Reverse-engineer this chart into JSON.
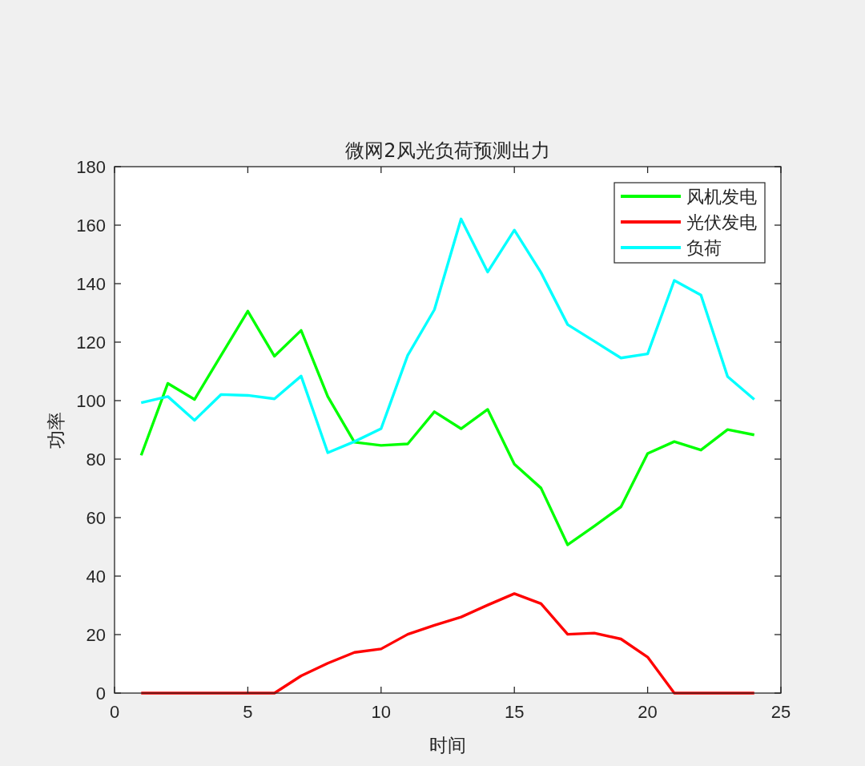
{
  "chart_data": {
    "type": "line",
    "title": "微网2风光负荷预测出力",
    "xlabel": "时间",
    "ylabel": "功率",
    "x": [
      1,
      2,
      3,
      4,
      5,
      6,
      7,
      8,
      9,
      10,
      11,
      12,
      13,
      14,
      15,
      16,
      17,
      18,
      19,
      20,
      21,
      22,
      23,
      24
    ],
    "series": [
      {
        "name": "风机发电",
        "color": "#00ff00",
        "values": [
          81.3,
          105.9,
          100.4,
          115.5,
          130.6,
          115.2,
          124.0,
          101.4,
          85.8,
          84.7,
          85.2,
          96.2,
          90.4,
          97.0,
          78.3,
          70.1,
          50.7,
          57.1,
          63.7,
          81.9,
          86.0,
          83.1,
          90.1,
          88.3
        ]
      },
      {
        "name": "光伏发电",
        "color": "#ff0000",
        "values": [
          0,
          0,
          0,
          0,
          0,
          0,
          5.9,
          10.2,
          13.9,
          15.1,
          20.1,
          23.2,
          26.0,
          30.1,
          34.0,
          30.6,
          20.1,
          20.5,
          18.5,
          12.3,
          0,
          0,
          0,
          0
        ]
      },
      {
        "name": "负荷",
        "color": "#00ffff",
        "values": [
          99.3,
          101.4,
          93.3,
          102.1,
          101.8,
          100.6,
          108.4,
          82.2,
          86.0,
          90.4,
          115.5,
          131.1,
          162.1,
          144.0,
          158.3,
          143.8,
          126.0,
          120.3,
          114.6,
          116.0,
          141.1,
          136.1,
          108.2,
          100.4
        ]
      }
    ],
    "xlim": [
      0,
      25
    ],
    "xticks": [
      0,
      5,
      10,
      15,
      20,
      25
    ],
    "ylim": [
      0,
      180
    ],
    "yticks": [
      0,
      20,
      40,
      60,
      80,
      100,
      120,
      140,
      160,
      180
    ],
    "legend": "top right",
    "line_style": "solid"
  }
}
